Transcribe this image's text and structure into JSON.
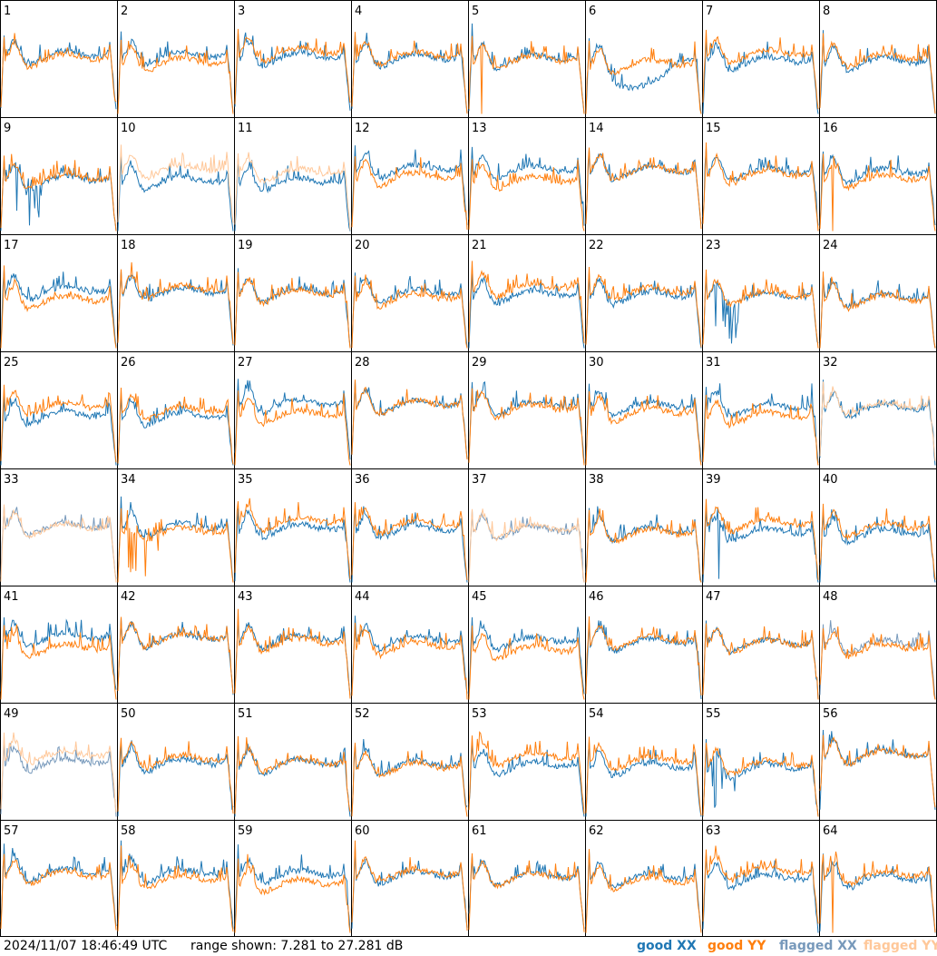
{
  "chart_data": {
    "type": "line",
    "layout": "8x8 grid of small-multiple spectra",
    "panels": [
      "1",
      "2",
      "3",
      "4",
      "5",
      "6",
      "7",
      "8",
      "9",
      "10",
      "11",
      "12",
      "13",
      "14",
      "15",
      "16",
      "17",
      "18",
      "19",
      "20",
      "21",
      "22",
      "23",
      "24",
      "25",
      "26",
      "27",
      "28",
      "29",
      "30",
      "31",
      "32",
      "33",
      "34",
      "35",
      "36",
      "37",
      "38",
      "39",
      "40",
      "41",
      "42",
      "43",
      "44",
      "45",
      "46",
      "47",
      "48",
      "49",
      "50",
      "51",
      "52",
      "53",
      "54",
      "55",
      "56",
      "57",
      "58",
      "59",
      "60",
      "61",
      "62",
      "63",
      "64"
    ],
    "series_styles": {
      "good_xx": "#1f77b4",
      "good_yy": "#ff7f0e",
      "flagged_xx": "#7799bb",
      "flagged_yy": "#ffc89a"
    },
    "flags": {
      "6": [
        "xx_dip"
      ],
      "5": [
        "yy_flagged_spike"
      ],
      "9": [
        "xx_flagged_spikes"
      ],
      "10": [
        "yy_flagged"
      ],
      "11": [
        "yy_flagged"
      ],
      "16": [
        "yy_flagged_spike"
      ],
      "23": [
        "xx_flagged_spikes"
      ],
      "32": [
        "yy_flagged"
      ],
      "33": [
        "both_flagged"
      ],
      "34": [
        "yy_spikes"
      ],
      "37": [
        "both_flagged"
      ],
      "39": [
        "xx_spike"
      ],
      "48": [
        "xx_flagged"
      ],
      "49": [
        "both_flagged"
      ],
      "55": [
        "xx_spikes"
      ],
      "64": [
        "yy_flagged_spike"
      ]
    },
    "ylim_db": [
      7.281,
      27.281
    ],
    "grid": false
  },
  "footer": {
    "timestamp": "2024/11/07 18:46:49 UTC",
    "range_text": "range shown: 7.281 to 27.281 dB",
    "legend": {
      "good_xx": "good XX",
      "good_yy": "good YY",
      "flagged_xx": "flagged XX",
      "flagged_yy": "flagged YY"
    }
  }
}
